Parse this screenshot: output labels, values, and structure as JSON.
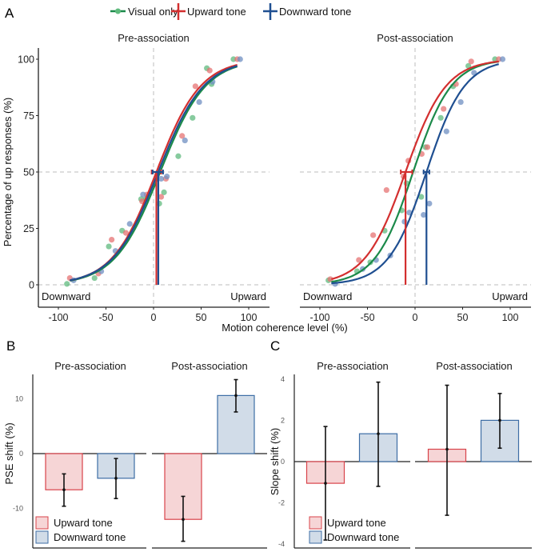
{
  "figure": {
    "panel_labels": [
      "A",
      "B",
      "C"
    ]
  },
  "chart_data": [
    {
      "panel": "A",
      "type": "scatter",
      "title": "",
      "xlabel": "Motion coherence level (%)",
      "ylabel": "Percentage of up responses (%)",
      "xlim": [
        -100,
        100
      ],
      "ylim": [
        0,
        100
      ],
      "xticks": [
        "-100",
        "-50",
        "0",
        "50",
        "100"
      ],
      "yticks": [
        "0",
        "25",
        "50",
        "75",
        "100"
      ],
      "xtick_values": [
        -100,
        -50,
        0,
        50,
        100
      ],
      "ytick_values": [
        0,
        25,
        50,
        75,
        100
      ],
      "corner_labels": {
        "left": "Downward",
        "right": "Upward"
      },
      "reference_lines": {
        "x": 0,
        "y": [
          0,
          50
        ]
      },
      "legend": {
        "placement": "top",
        "entries": [
          {
            "name": "Visual only",
            "color": "#1b8a4a"
          },
          {
            "name": "Upward tone",
            "color": "#d32f2f"
          },
          {
            "name": "Downward tone",
            "color": "#1f4f91"
          }
        ]
      },
      "facets": [
        {
          "title": "Pre-association",
          "series": [
            {
              "name": "Visual only",
              "color": "#1b8a4a",
              "point_color": "#5fba7d",
              "fit": {
                "pse": 7,
                "slope": 0.042
              },
              "points": [
                [
                  -91,
                  0.4
                ],
                [
                  -62,
                  3
                ],
                [
                  -47,
                  17
                ],
                [
                  -33,
                  24
                ],
                [
                  -13,
                  38
                ],
                [
                  -8,
                  38
                ],
                [
                  6,
                  36
                ],
                [
                  11,
                  41
                ],
                [
                  26,
                  57
                ],
                [
                  41,
                  74
                ],
                [
                  56,
                  96
                ],
                [
                  61,
                  89
                ],
                [
                  84,
                  100
                ]
              ]
            },
            {
              "name": "Upward tone",
              "color": "#d32f2f",
              "point_color": "#e57373",
              "fit": {
                "pse": 3,
                "slope": 0.043
              },
              "pse_marker": {
                "x": 3,
                "ci": [
                  -2,
                  8
                ]
              },
              "points": [
                [
                  -88,
                  3
                ],
                [
                  -58,
                  5
                ],
                [
                  -44,
                  20
                ],
                [
                  -29,
                  23
                ],
                [
                  -12,
                  37
                ],
                [
                  -7,
                  40
                ],
                [
                  8,
                  39
                ],
                [
                  13,
                  47
                ],
                [
                  30,
                  66
                ],
                [
                  44,
                  88
                ],
                [
                  59,
                  95
                ],
                [
                  88,
                  100
                ]
              ]
            },
            {
              "name": "Downward tone",
              "color": "#1f4f91",
              "point_color": "#6f8fc2",
              "fit": {
                "pse": 5,
                "slope": 0.042
              },
              "pse_marker": {
                "x": 5,
                "ci": [
                  -1,
                  10
                ]
              },
              "points": [
                [
                  -84,
                  2
                ],
                [
                  -55,
                  6
                ],
                [
                  -40,
                  15
                ],
                [
                  -25,
                  27
                ],
                [
                  -11,
                  40
                ],
                [
                  8,
                  47
                ],
                [
                  14,
                  48
                ],
                [
                  33,
                  64
                ],
                [
                  48,
                  81
                ],
                [
                  62,
                  90
                ],
                [
                  91,
                  100
                ]
              ]
            }
          ]
        },
        {
          "title": "Post-association",
          "series": [
            {
              "name": "Visual only",
              "color": "#1b8a4a",
              "point_color": "#5fba7d",
              "fit": {
                "pse": -2,
                "slope": 0.05
              },
              "points": [
                [
                  -91,
                  2
                ],
                [
                  -61,
                  6
                ],
                [
                  -47,
                  10
                ],
                [
                  -32,
                  24
                ],
                [
                  -14,
                  33
                ],
                [
                  -9,
                  45
                ],
                [
                  6.5,
                  39
                ],
                [
                  11,
                  61
                ],
                [
                  27,
                  74
                ],
                [
                  40,
                  88
                ],
                [
                  56,
                  97
                ],
                [
                  84,
                  100
                ]
              ]
            },
            {
              "name": "Upward tone",
              "color": "#d32f2f",
              "point_color": "#e57373",
              "fit": {
                "pse": -10,
                "slope": 0.047
              },
              "pse_marker": {
                "x": -10,
                "ci": [
                  -15,
                  -3
                ]
              },
              "points": [
                [
                  -89,
                  2.5
                ],
                [
                  -59,
                  11
                ],
                [
                  -44,
                  22
                ],
                [
                  -30,
                  42
                ],
                [
                  -12,
                  48
                ],
                [
                  -7,
                  55
                ],
                [
                  7,
                  58
                ],
                [
                  13,
                  61
                ],
                [
                  30,
                  78
                ],
                [
                  43,
                  89
                ],
                [
                  59,
                  99
                ],
                [
                  88,
                  100
                ]
              ]
            },
            {
              "name": "Downward tone",
              "color": "#1f4f91",
              "point_color": "#6f8fc2",
              "fit": {
                "pse": 12,
                "slope": 0.05
              },
              "pse_marker": {
                "x": 12,
                "ci": [
                  9,
                  15
                ]
              },
              "points": [
                [
                  -84,
                  0.4
                ],
                [
                  -55,
                  7
                ],
                [
                  -41,
                  11
                ],
                [
                  -26,
                  13
                ],
                [
                  -11,
                  28
                ],
                [
                  -6,
                  32
                ],
                [
                  9,
                  31
                ],
                [
                  15,
                  36
                ],
                [
                  33,
                  68
                ],
                [
                  48,
                  81
                ],
                [
                  62,
                  94
                ],
                [
                  92,
                  100
                ]
              ]
            }
          ]
        }
      ]
    },
    {
      "panel": "B",
      "type": "bar",
      "ylabel": "PSE shift (%)",
      "ylim": [
        -16.5,
        15
      ],
      "yticks": [
        "-10",
        "0",
        "10"
      ],
      "ytick_values": [
        -10,
        0,
        10
      ],
      "legend": {
        "placement": "bottom-left",
        "entries": [
          "Upward tone",
          "Downward tone"
        ]
      },
      "facets": [
        {
          "title": "Pre-association",
          "categories": [
            "Upward tone",
            "Downward tone"
          ],
          "values": [
            -6.6,
            -4.5
          ],
          "error_low": [
            -9.6,
            -8.2
          ],
          "error_high": [
            -3.7,
            -0.9
          ]
        },
        {
          "title": "Post-association",
          "categories": [
            "Upward tone",
            "Downward tone"
          ],
          "values": [
            -12.0,
            10.6
          ],
          "error_low": [
            -16.0,
            7.6
          ],
          "error_high": [
            -7.8,
            13.5
          ]
        }
      ]
    },
    {
      "panel": "C",
      "type": "bar",
      "ylabel": "Slope shift (%)",
      "ylim": [
        -4.1,
        4.2
      ],
      "yticks": [
        "-4",
        "-2",
        "0",
        "2",
        "4"
      ],
      "ytick_values": [
        -4,
        -2,
        0,
        2,
        4
      ],
      "legend": {
        "placement": "bottom-left",
        "entries": [
          "Upward tone",
          "Downward tone"
        ]
      },
      "facets": [
        {
          "title": "Pre-association",
          "categories": [
            "Upward tone",
            "Downward tone"
          ],
          "values": [
            -1.05,
            1.35
          ],
          "error_low": [
            -3.8,
            -1.2
          ],
          "error_high": [
            1.7,
            3.85
          ]
        },
        {
          "title": "Post-association",
          "categories": [
            "Upward tone",
            "Downward tone"
          ],
          "values": [
            0.6,
            2.0
          ],
          "error_low": [
            -2.6,
            0.65
          ],
          "error_high": [
            3.7,
            3.3
          ]
        }
      ]
    }
  ],
  "colors": {
    "bar_up_fill": "#f6d5d6",
    "bar_up_stroke": "#d8434a",
    "bar_down_fill": "#d1dce8",
    "bar_down_stroke": "#3d6da5",
    "ref_line": "#bdbdbd",
    "axis": "#222222",
    "error": "#111111"
  }
}
